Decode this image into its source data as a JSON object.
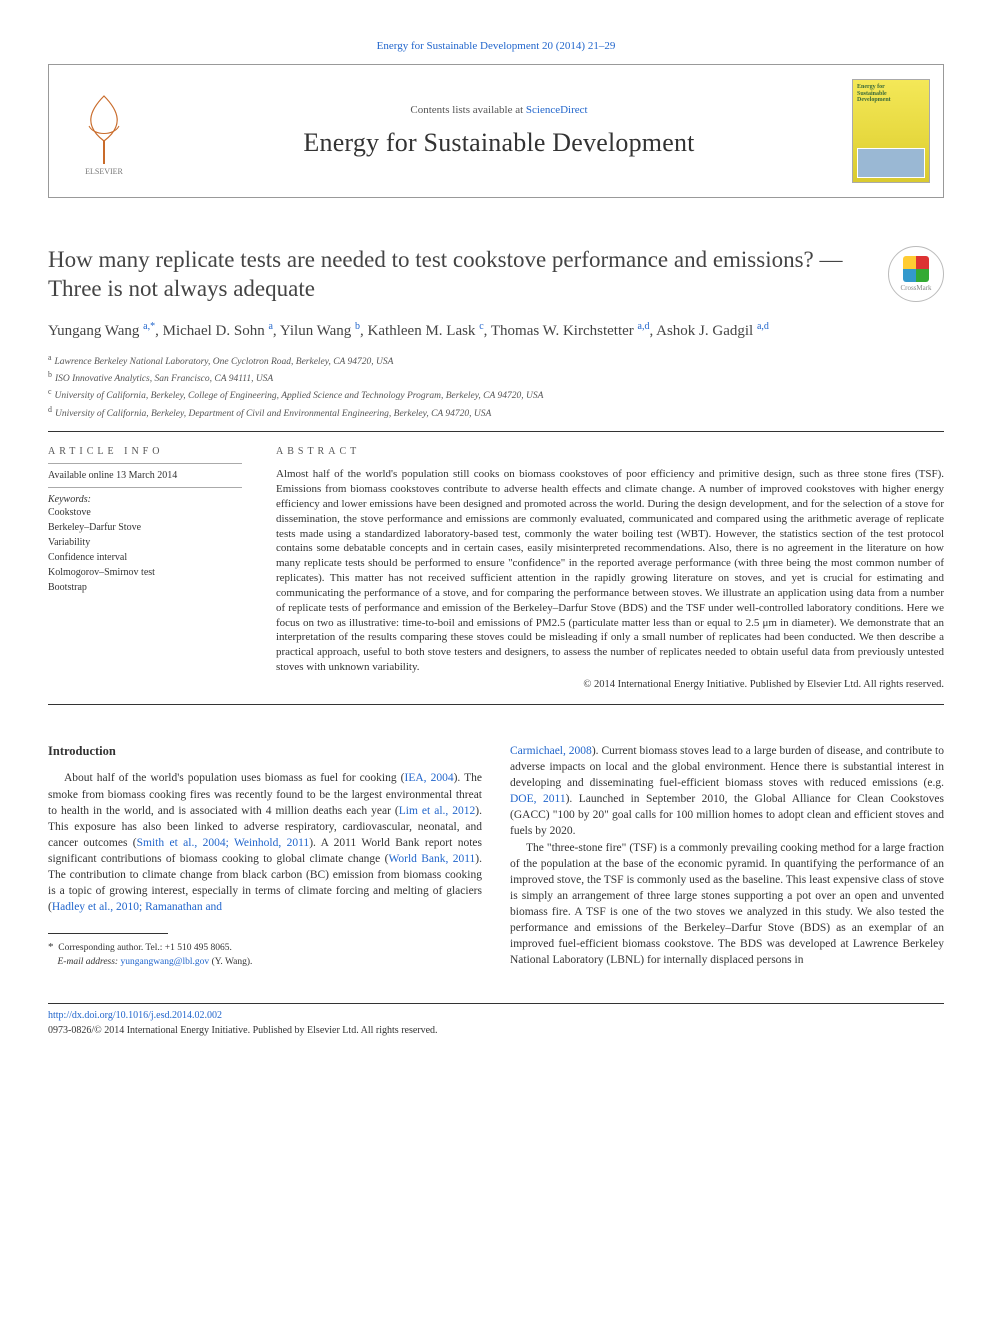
{
  "journal_ref": "Energy for Sustainable Development 20 (2014) 21–29",
  "header": {
    "contents_prefix": "Contents lists available at ",
    "contents_link": "ScienceDirect",
    "journal_name": "Energy for Sustainable Development",
    "cover_label_top": "Energy for",
    "cover_label_mid": "Sustainable",
    "cover_label_bot": "Development"
  },
  "title": "How many replicate tests are needed to test cookstove performance and emissions? — Three is not always adequate",
  "crossmark_label": "CrossMark",
  "authors_html": "Yungang Wang <sup>a,*</sup>, Michael D. Sohn <sup>a</sup>, Yilun Wang <sup>b</sup>, Kathleen M. Lask <sup>c</sup>, Thomas W. Kirchstetter <sup>a,d</sup>, Ashok J. Gadgil <sup>a,d</sup>",
  "affiliations": [
    {
      "sup": "a",
      "text": "Lawrence Berkeley National Laboratory, One Cyclotron Road, Berkeley, CA 94720, USA"
    },
    {
      "sup": "b",
      "text": "ISO Innovative Analytics, San Francisco, CA 94111, USA"
    },
    {
      "sup": "c",
      "text": "University of California, Berkeley, College of Engineering, Applied Science and Technology Program, Berkeley, CA 94720, USA"
    },
    {
      "sup": "d",
      "text": "University of California, Berkeley, Department of Civil and Environmental Engineering, Berkeley, CA 94720, USA"
    }
  ],
  "info": {
    "heading": "article info",
    "online": "Available online 13 March 2014",
    "kw_label": "Keywords:",
    "keywords": [
      "Cookstove",
      "Berkeley–Darfur Stove",
      "Variability",
      "Confidence interval",
      "Kolmogorov–Smirnov test",
      "Bootstrap"
    ]
  },
  "abstract": {
    "heading": "abstract",
    "text": "Almost half of the world's population still cooks on biomass cookstoves of poor efficiency and primitive design, such as three stone fires (TSF). Emissions from biomass cookstoves contribute to adverse health effects and climate change. A number of improved cookstoves with higher energy efficiency and lower emissions have been designed and promoted across the world. During the design development, and for the selection of a stove for dissemination, the stove performance and emissions are commonly evaluated, communicated and compared using the arithmetic average of replicate tests made using a standardized laboratory-based test, commonly the water boiling test (WBT). However, the statistics section of the test protocol contains some debatable concepts and in certain cases, easily misinterpreted recommendations. Also, there is no agreement in the literature on how many replicate tests should be performed to ensure \"confidence\" in the reported average performance (with three being the most common number of replicates). This matter has not received sufficient attention in the rapidly growing literature on stoves, and yet is crucial for estimating and communicating the performance of a stove, and for comparing the performance between stoves. We illustrate an application using data from a number of replicate tests of performance and emission of the Berkeley–Darfur Stove (BDS) and the TSF under well-controlled laboratory conditions. Here we focus on two as illustrative: time-to-boil and emissions of PM2.5 (particulate matter less than or equal to 2.5 μm in diameter). We demonstrate that an interpretation of the results comparing these stoves could be misleading if only a small number of replicates had been conducted. We then describe a practical approach, useful to both stove testers and designers, to assess the number of replicates needed to obtain useful data from previously untested stoves with unknown variability.",
    "copyright": "© 2014 International Energy Initiative. Published by Elsevier Ltd. All rights reserved."
  },
  "intro_head": "Introduction",
  "intro_p1_pre": "About half of the world's population uses biomass as fuel for cooking (",
  "intro_link1": "IEA, 2004",
  "intro_p1_mid1": "). The smoke from biomass cooking fires was recently found to be the largest environmental threat to health in the world, and is associated with 4 million deaths each year (",
  "intro_link2": "Lim et al., 2012",
  "intro_p1_mid2": "). This exposure has also been linked to adverse respiratory, cardiovascular, neonatal, and cancer outcomes (",
  "intro_link3": "Smith et al., 2004; Weinhold, 2011",
  "intro_p1_mid3": "). A 2011 World Bank report notes significant contributions of biomass cooking to global climate change (",
  "intro_link4": "World Bank, 2011",
  "intro_p1_mid4": "). The contribution to climate change from black carbon (BC) emission from biomass cooking is a topic of growing interest, especially in terms of climate forcing and melting of glaciers (",
  "intro_link5": "Hadley et al., 2010; Ramanathan and ",
  "intro_link5b": "Carmichael, 2008",
  "intro_p2_mid1": "). Current biomass stoves lead to a large burden of disease, and contribute to adverse impacts on local and the global environment. Hence there is substantial interest in developing and disseminating fuel-efficient biomass stoves with reduced emissions (e.g. ",
  "intro_link6": "DOE, 2011",
  "intro_p2_tail": "). Launched in September 2010, the Global Alliance for Clean Cookstoves (GACC) \"100 by 20\" goal calls for 100 million homes to adopt clean and efficient stoves and fuels by 2020.",
  "intro_p3": "The \"three-stone fire\" (TSF) is a commonly prevailing cooking method for a large fraction of the population at the base of the economic pyramid. In quantifying the performance of an improved stove, the TSF is commonly used as the baseline. This least expensive class of stove is simply an arrangement of three large stones supporting a pot over an open and unvented biomass fire. A TSF is one of the two stoves we analyzed in this study. We also tested the performance and emissions of the Berkeley–Darfur Stove (BDS) as an exemplar of an improved fuel-efficient biomass cookstove. The BDS was developed at Lawrence Berkeley National Laboratory (LBNL) for internally displaced persons in",
  "footnote": {
    "star": "*",
    "corr": "Corresponding author. Tel.: +1 510 495 8065.",
    "email_label": "E-mail address:",
    "email": "yungangwang@lbl.gov",
    "email_tail": " (Y. Wang)."
  },
  "footer": {
    "doi": "http://dx.doi.org/10.1016/j.esd.2014.02.002",
    "issn_line": "0973-0826/© 2014 International Energy Initiative. Published by Elsevier Ltd. All rights reserved."
  },
  "colors": {
    "link": "#2266cc",
    "text": "#333333",
    "rule": "#333333",
    "cover_bg": "#ecd93f"
  }
}
